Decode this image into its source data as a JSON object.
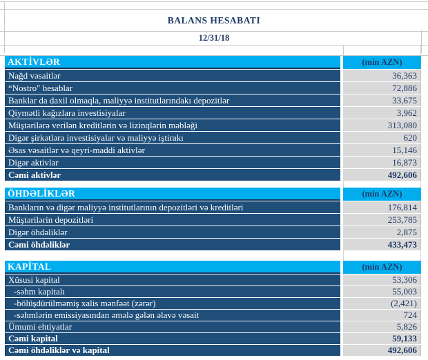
{
  "title": "BALANS HESABATI",
  "date": "12/31/18",
  "unit_label": "(min AZN)",
  "colors": {
    "header_cyan": "#00AEEF",
    "row_navy": "#1F4E79",
    "row_border_navy": "#17375E",
    "value_gray": "#D9D9D9",
    "text_navy": "#1F3864",
    "grid_gray": "#C9C9C9"
  },
  "sections": [
    {
      "name": "AKTİVLƏR",
      "rows": [
        {
          "label": "Nağd vəsaitlər",
          "value": "36,363"
        },
        {
          "label": "“Nostro\" hesablar",
          "value": "72,886"
        },
        {
          "label": "Banklar da daxil olmaqla, maliyyə institutlarındakı depozitlər",
          "value": "33,675"
        },
        {
          "label": "Qiymətli kağızlara investisiyalar",
          "value": "3,962"
        },
        {
          "label": "Müştərilərə verilən kreditlərin və lizinqlərin məbləği",
          "value": "313,080"
        },
        {
          "label": "Digər şirkətlərə investisiyalar və maliyyə iştirakı",
          "value": "620"
        },
        {
          "label": "Əsas vəsaitlər və qeyri-maddi aktivlər",
          "value": "15,146"
        },
        {
          "label": "Digər aktivlər",
          "value": "16,873"
        },
        {
          "label": "Cəmi aktivlər",
          "value": "492,606",
          "bold": true
        }
      ]
    },
    {
      "name": "ÖHDƏLİKLƏR",
      "rows": [
        {
          "label": "Bankların və digər maliyyə institutlarının depozitləri və kreditləri",
          "value": "176,814"
        },
        {
          "label": "Müştərilərin depozitləri",
          "value": "253,785"
        },
        {
          "label": "Digər öhdəliklər",
          "value": "2,875"
        },
        {
          "label": "Cəmi öhdəliklər",
          "value": "433,473",
          "bold": true
        }
      ]
    },
    {
      "name": "KAPİTAL",
      "rows": [
        {
          "label": "Xüsusi kapital",
          "value": "53,306"
        },
        {
          "label": "-səhm kapitalı",
          "value": "55,003",
          "indent": true
        },
        {
          "label": "-bölüşdürülməmiş xalis mənfəət (zərər)",
          "value": "(2,421)",
          "indent": true
        },
        {
          "label": "-səhmlərin emissiyasından əmələ gələn əlavə vəsait",
          "value": "724",
          "indent": true
        },
        {
          "label": "Ümumi ehtiyatlar",
          "value": "5,826"
        },
        {
          "label": "Cəmi kapital",
          "value": "59,133",
          "bold": true
        },
        {
          "label": "Cəmi öhdəliklər və kapital",
          "value": "492,606",
          "bold": true
        }
      ]
    }
  ]
}
